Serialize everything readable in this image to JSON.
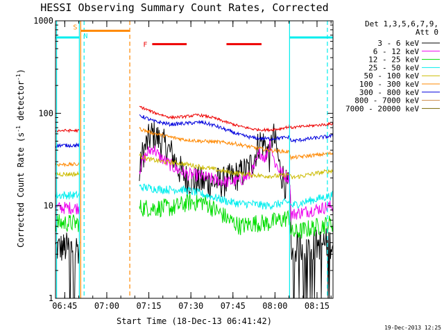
{
  "chart_data": {
    "type": "line",
    "title": "HESSI Observing Summary Count Rates, Corrected",
    "xlabel": "Start Time (18-Dec-13 06:41:42)",
    "ylabel_main": "Corrected Count Rate (s",
    "ylabel_sup1": "-1",
    "ylabel_mid": " detector",
    "ylabel_sup2": "-1",
    "ylabel_end": ")",
    "x_unit": "minutes since 06:41:42",
    "xlim": [
      0,
      99
    ],
    "y_scale": "log",
    "ylim": [
      1,
      1000
    ],
    "x_ticks": [
      {
        "label": "06:45",
        "t": 3.3
      },
      {
        "label": "07:00",
        "t": 18.3
      },
      {
        "label": "07:15",
        "t": 33.3
      },
      {
        "label": "07:30",
        "t": 48.3
      },
      {
        "label": "07:45",
        "t": 63.3
      },
      {
        "label": "08:00",
        "t": 78.3
      },
      {
        "label": "08:15",
        "t": 93.3
      }
    ],
    "y_ticks": [
      {
        "label": "1",
        "v": 1
      },
      {
        "label": "10",
        "v": 10
      },
      {
        "label": "100",
        "v": 100
      },
      {
        "label": "1000",
        "v": 1000
      }
    ],
    "legend_header": [
      "Det 1,3,5,6,7,9,",
      "Att 0"
    ],
    "legend_placement": "right",
    "gaps": [
      [
        8.5,
        30.0
      ],
      [
        83.5,
        99
      ]
    ],
    "series": [
      {
        "name": "3 - 6 keV",
        "color": "#000000",
        "noise": 0.35,
        "points": [
          [
            0,
            3.5
          ],
          [
            8.5,
            3.5
          ],
          [
            30.0,
            22
          ],
          [
            31.0,
            35
          ],
          [
            33.0,
            50
          ],
          [
            34.5,
            60
          ],
          [
            36,
            55
          ],
          [
            38,
            48
          ],
          [
            41,
            38
          ],
          [
            44,
            25
          ],
          [
            47,
            19
          ],
          [
            52,
            18
          ],
          [
            56,
            18
          ],
          [
            60,
            18
          ],
          [
            63,
            20
          ],
          [
            66,
            22
          ],
          [
            69,
            25
          ],
          [
            71,
            34
          ],
          [
            73,
            50
          ],
          [
            75,
            45
          ],
          [
            76.5,
            32
          ],
          [
            77.5,
            60
          ],
          [
            80,
            25
          ],
          [
            82,
            17
          ],
          [
            83.5,
            15
          ],
          [
            84,
            3.5
          ],
          [
            99,
            4
          ]
        ]
      },
      {
        "name": "6 - 12 keV",
        "color": "#ee00ee",
        "noise": 0.14,
        "points": [
          [
            0,
            9.5
          ],
          [
            8.5,
            9.5
          ],
          [
            30.0,
            25
          ],
          [
            31,
            30
          ],
          [
            33,
            38
          ],
          [
            35,
            42
          ],
          [
            37,
            34
          ],
          [
            40,
            29
          ],
          [
            43,
            25
          ],
          [
            47,
            22
          ],
          [
            52,
            21
          ],
          [
            57,
            19
          ],
          [
            62,
            18
          ],
          [
            66,
            19
          ],
          [
            69,
            21
          ],
          [
            71,
            26
          ],
          [
            73,
            38
          ],
          [
            75,
            32
          ],
          [
            76.5,
            50
          ],
          [
            78,
            30
          ],
          [
            80,
            24
          ],
          [
            82,
            21
          ],
          [
            83.5,
            20
          ],
          [
            84,
            8
          ],
          [
            99,
            10
          ]
        ]
      },
      {
        "name": "12 - 25 keV",
        "color": "#00dd00",
        "noise": 0.2,
        "points": [
          [
            0,
            6.5
          ],
          [
            8.5,
            6.5
          ],
          [
            30.0,
            9.5
          ],
          [
            36,
            9.5
          ],
          [
            42,
            9.5
          ],
          [
            48,
            11
          ],
          [
            53,
            11
          ],
          [
            57,
            9
          ],
          [
            62,
            7
          ],
          [
            66,
            6
          ],
          [
            71,
            6.5
          ],
          [
            76,
            6.5
          ],
          [
            80,
            7
          ],
          [
            83.5,
            7.5
          ],
          [
            84,
            5
          ],
          [
            99,
            6.5
          ]
        ]
      },
      {
        "name": "25 - 50 keV",
        "color": "#00eeee",
        "noise": 0.09,
        "points": [
          [
            0,
            13
          ],
          [
            8.5,
            13
          ],
          [
            30.0,
            16
          ],
          [
            38,
            15
          ],
          [
            45,
            15
          ],
          [
            50,
            14
          ],
          [
            54,
            13
          ],
          [
            58,
            12
          ],
          [
            62,
            11
          ],
          [
            66,
            10.5
          ],
          [
            70,
            10.5
          ],
          [
            75,
            10
          ],
          [
            80,
            10.5
          ],
          [
            83.5,
            11
          ],
          [
            84,
            10
          ],
          [
            99,
            13
          ]
        ]
      },
      {
        "name": "50 - 100 keV",
        "color": "#ccbb00",
        "noise": 0.05,
        "points": [
          [
            0,
            22
          ],
          [
            8.5,
            22
          ],
          [
            30.0,
            35
          ],
          [
            33,
            32
          ],
          [
            38,
            30
          ],
          [
            44,
            29
          ],
          [
            50,
            27
          ],
          [
            56,
            25
          ],
          [
            62,
            23
          ],
          [
            68,
            22
          ],
          [
            74,
            21
          ],
          [
            80,
            21
          ],
          [
            83.5,
            22
          ],
          [
            84,
            20
          ],
          [
            99,
            24
          ]
        ]
      },
      {
        "name": "100 - 300 keV",
        "color": "#ff8800",
        "noise": 0.04,
        "points": [
          [
            0,
            28
          ],
          [
            8.5,
            28
          ],
          [
            30.0,
            68
          ],
          [
            34,
            62
          ],
          [
            40,
            56
          ],
          [
            46,
            52
          ],
          [
            52,
            50
          ],
          [
            58,
            49
          ],
          [
            64,
            47
          ],
          [
            70,
            43
          ],
          [
            76,
            40
          ],
          [
            80,
            39
          ],
          [
            83.5,
            38
          ],
          [
            84,
            33
          ],
          [
            99,
            37
          ]
        ]
      },
      {
        "name": "300 - 800 keV",
        "color": "#0000dd",
        "noise": 0.04,
        "points": [
          [
            0,
            45
          ],
          [
            8.5,
            45
          ],
          [
            30.0,
            95
          ],
          [
            35,
            82
          ],
          [
            41,
            76
          ],
          [
            47,
            78
          ],
          [
            52,
            80
          ],
          [
            56,
            75
          ],
          [
            61,
            66
          ],
          [
            66,
            58
          ],
          [
            71,
            54
          ],
          [
            76,
            53
          ],
          [
            80,
            54
          ],
          [
            83.5,
            55
          ],
          [
            84,
            50
          ],
          [
            99,
            57
          ]
        ]
      },
      {
        "name": "800 - 7000 keV",
        "color": "#cc8844",
        "noise": 0,
        "points": []
      },
      {
        "name": "7000 - 20000 keV",
        "color": "#776600",
        "noise": 0,
        "points": []
      },
      {
        "name": "",
        "color": "#ee0000",
        "noise": 0.03,
        "points": [
          [
            0,
            65
          ],
          [
            8.5,
            65
          ],
          [
            30.0,
            118
          ],
          [
            35,
            102
          ],
          [
            41,
            90
          ],
          [
            46,
            92
          ],
          [
            51,
            96
          ],
          [
            56,
            90
          ],
          [
            61,
            80
          ],
          [
            66,
            72
          ],
          [
            71,
            67
          ],
          [
            76,
            66
          ],
          [
            80,
            68
          ],
          [
            83.5,
            72
          ],
          [
            84,
            70
          ],
          [
            99,
            77
          ]
        ]
      }
    ],
    "annotations": {
      "saa": {
        "label": "S",
        "color": "#ff8800",
        "t": [
          9.0,
          26.5
        ],
        "level": 780
      },
      "night": {
        "label": "N",
        "color": "#00eeee",
        "t": [
          0,
          8.5
        ]
      },
      "flare": {
        "label": "F",
        "color": "#ee0000",
        "segments": [
          [
            34.5,
            46.8
          ],
          [
            61.0,
            73.5
          ]
        ],
        "level": 560
      },
      "attenuator_bar": {
        "color": "#00eeee",
        "segments": [
          [
            0,
            8.5
          ],
          [
            83.5,
            99
          ]
        ],
        "level": 660
      },
      "solid_lines": [
        {
          "t": 0.4,
          "color": "#00eeee"
        },
        {
          "t": 8.5,
          "color": "#00eeee"
        },
        {
          "t": 83.5,
          "color": "#00eeee"
        },
        {
          "t": 9.0,
          "color": "#ff8800"
        }
      ],
      "dashed_lines": [
        {
          "t": 10.2,
          "color": "#00eeee"
        },
        {
          "t": 26.5,
          "color": "#ff8800"
        },
        {
          "t": 97.0,
          "color": "#00eeee"
        }
      ]
    }
  },
  "footer": {
    "datestamp": "19-Dec-2013 12:25"
  }
}
